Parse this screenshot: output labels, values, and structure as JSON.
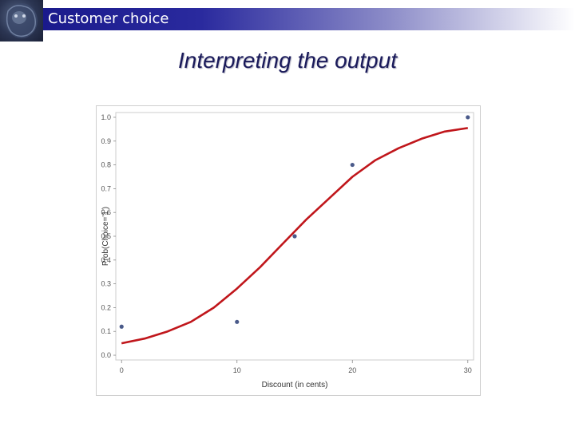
{
  "header": {
    "title": "Customer choice"
  },
  "slide": {
    "title": "Interpreting the output"
  },
  "colors": {
    "header_band": "#1a1a8c",
    "curve": "#c0161b",
    "points": "#4a5a8a",
    "plot_border": "#cccccc"
  },
  "chart_data": {
    "type": "scatter",
    "title": "",
    "xlabel": "Discount (in cents)",
    "ylabel": "Prob(Choice='1')",
    "xlim": [
      -0.5,
      30.5
    ],
    "ylim": [
      -0.02,
      1.02
    ],
    "x_ticks": [
      0,
      10,
      20,
      30
    ],
    "x_tick_labels": [
      "0",
      "10",
      "20",
      "30"
    ],
    "y_ticks": [
      0.0,
      0.1,
      0.2,
      0.3,
      0.4,
      0.5,
      0.6,
      0.7,
      0.8,
      0.9,
      1.0
    ],
    "y_tick_labels": [
      "0.0",
      "0.1",
      "0.2",
      "0.3",
      "0.4",
      "0.5",
      "0.6",
      "0.7",
      "0.8",
      "0.9",
      "1.0"
    ],
    "grid": false,
    "legend": "none",
    "points": [
      {
        "x": 0,
        "y": 0.12
      },
      {
        "x": 10,
        "y": 0.14
      },
      {
        "x": 15,
        "y": 0.5
      },
      {
        "x": 20,
        "y": 0.8
      },
      {
        "x": 30,
        "y": 1.0
      }
    ],
    "fitted_curve": {
      "x": [
        0,
        2,
        4,
        6,
        8,
        10,
        12,
        14,
        16,
        18,
        20,
        22,
        24,
        26,
        28,
        30
      ],
      "y": [
        0.05,
        0.07,
        0.1,
        0.14,
        0.2,
        0.28,
        0.37,
        0.47,
        0.57,
        0.66,
        0.75,
        0.82,
        0.87,
        0.91,
        0.94,
        0.955
      ]
    }
  }
}
